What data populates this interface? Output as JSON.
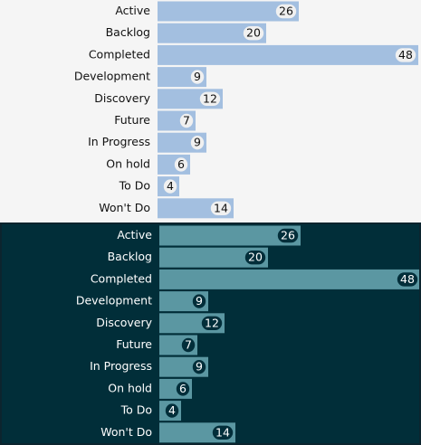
{
  "chart_data": [
    {
      "type": "bar",
      "orientation": "horizontal",
      "theme": "light",
      "categories": [
        "Active",
        "Backlog",
        "Completed",
        "Development",
        "Discovery",
        "Future",
        "In Progress",
        "On hold",
        "To Do",
        "Won't Do"
      ],
      "values": [
        26,
        20,
        48,
        9,
        12,
        7,
        9,
        6,
        4,
        14
      ],
      "title": "",
      "xlabel": "",
      "ylabel": "",
      "xlim": [
        0,
        48
      ],
      "grid": false,
      "colors": {
        "background": "#f5f5f5",
        "bar": "#a3bfe0",
        "label": "#111111",
        "badge_fill": "#f0f0f0",
        "badge_stroke": "#a3bfe0",
        "badge_text": "#111111"
      }
    },
    {
      "type": "bar",
      "orientation": "horizontal",
      "theme": "dark",
      "categories": [
        "Active",
        "Backlog",
        "Completed",
        "Development",
        "Discovery",
        "Future",
        "In Progress",
        "On hold",
        "To Do",
        "Won't Do"
      ],
      "values": [
        26,
        20,
        48,
        9,
        12,
        7,
        9,
        6,
        4,
        14
      ],
      "title": "",
      "xlabel": "",
      "ylabel": "",
      "xlim": [
        0,
        48
      ],
      "grid": false,
      "colors": {
        "background": "#012e39",
        "bar": "#5b97a2",
        "label": "#ffffff",
        "badge_fill": "#022e3a",
        "badge_stroke": "#5b97a2",
        "badge_text": "#ffffff"
      }
    }
  ]
}
